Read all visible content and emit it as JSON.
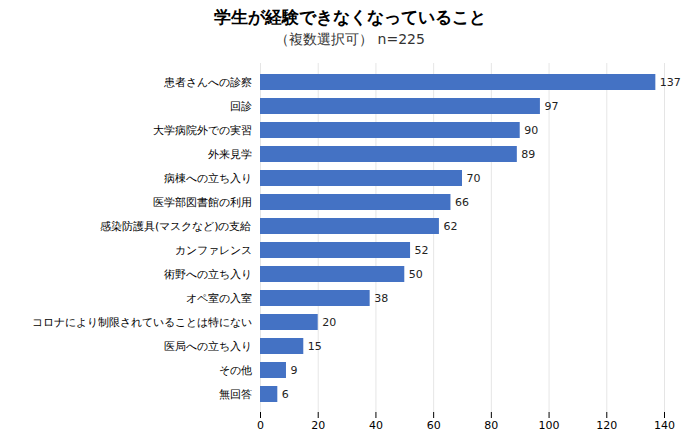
{
  "chart_data": {
    "type": "bar",
    "orientation": "horizontal",
    "title": "学生が経験できなくなっていること",
    "subtitle": "（複数選択可）  n=225",
    "categories": [
      "無回答",
      "その他",
      "医局への立ち入り",
      "コロナにより制限されていることは特にない",
      "オペ室の入室",
      "術野への立ち入り",
      "カンファレンス",
      "感染防護具(マスクなど)の支給",
      "医学部図書館の利用",
      "病棟への立ち入り",
      "外来見学",
      "大学病院外での実習",
      "回診",
      "患者さんへの診察"
    ],
    "values": [
      6,
      9,
      15,
      20,
      38,
      50,
      52,
      62,
      66,
      70,
      89,
      90,
      97,
      137
    ],
    "color": "#4472C4",
    "xlim": [
      0,
      140
    ],
    "xticks": [
      0,
      20,
      40,
      60,
      80,
      100,
      120,
      140
    ],
    "grid": true,
    "data_labels": true
  }
}
